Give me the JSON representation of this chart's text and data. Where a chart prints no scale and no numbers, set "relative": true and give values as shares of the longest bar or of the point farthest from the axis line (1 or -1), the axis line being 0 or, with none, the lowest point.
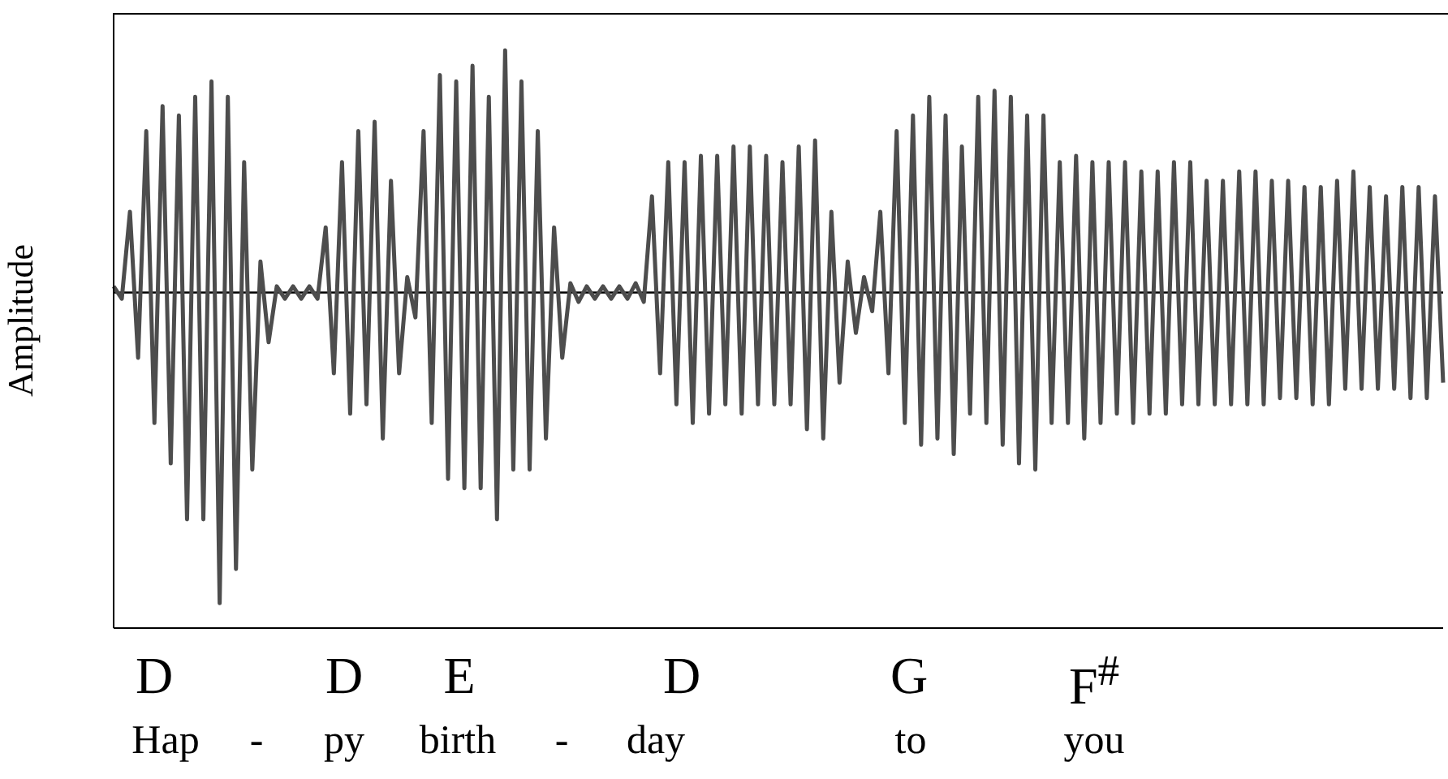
{
  "chart_data": {
    "type": "line",
    "relative": true,
    "ylabel": "Amplitude",
    "color": "#4d4d4d",
    "marker": "none",
    "ref_lines": [
      {
        "axis": "y",
        "value": 0,
        "color": "#000000"
      }
    ],
    "annotations": [
      "D",
      "D",
      "E",
      "D",
      "G",
      "F$^{#}$",
      "Hap",
      "-",
      "py",
      "birth",
      "-",
      "day",
      "to",
      "you"
    ],
    "categories": [
      null,
      null,
      null,
      null,
      null,
      null,
      null,
      null,
      null,
      null,
      null,
      null,
      null,
      null,
      null,
      null,
      null,
      null,
      null,
      null,
      null,
      null,
      null,
      null,
      null,
      null,
      null,
      null,
      null,
      null,
      null,
      null,
      null,
      null,
      null,
      null,
      null,
      null,
      null,
      null,
      null,
      null,
      null,
      null,
      null,
      null,
      null,
      null,
      null,
      null,
      null,
      null,
      null,
      null,
      null,
      null,
      null,
      null,
      null,
      null,
      null,
      null,
      null,
      null,
      null,
      null,
      null,
      null,
      null,
      null,
      null,
      null,
      null,
      null,
      null,
      null,
      null,
      null,
      null,
      null,
      null,
      null,
      null,
      null,
      null,
      null,
      null,
      null,
      null,
      null,
      null,
      null,
      null,
      null,
      null,
      null,
      null,
      null,
      null,
      null,
      null,
      null,
      null,
      null,
      null,
      null,
      null,
      null,
      null,
      null,
      null,
      null,
      null,
      null,
      null,
      null,
      null,
      null,
      null,
      null,
      null,
      null,
      null,
      null,
      null,
      null,
      null,
      null,
      null,
      null,
      null,
      null,
      null,
      null,
      null,
      null,
      null,
      null,
      null,
      null,
      null,
      null,
      null,
      null,
      null,
      null,
      null,
      null,
      null,
      null,
      null,
      null,
      null,
      null,
      null,
      null,
      null,
      null,
      null,
      null,
      null,
      null,
      null,
      null
    ],
    "values": [
      0.02,
      -0.02,
      0.26,
      -0.21,
      0.52,
      -0.42,
      0.6,
      -0.55,
      0.57,
      -0.73,
      0.63,
      -0.73,
      0.68,
      -1,
      0.63,
      -0.89,
      0.42,
      -0.57,
      0.1,
      -0.16,
      0.02,
      -0.02,
      0.02,
      -0.02,
      0.02,
      -0.02,
      0.21,
      -0.26,
      0.42,
      -0.39,
      0.52,
      -0.36,
      0.55,
      -0.47,
      0.36,
      -0.26,
      0.05,
      -0.08,
      0.52,
      -0.42,
      0.7,
      -0.6,
      0.68,
      -0.63,
      0.73,
      -0.63,
      0.63,
      -0.73,
      0.78,
      -0.57,
      0.68,
      -0.57,
      0.52,
      -0.47,
      0.21,
      -0.21,
      0.03,
      -0.03,
      0.02,
      -0.02,
      0.02,
      -0.02,
      0.02,
      -0.02,
      0.03,
      -0.03,
      0.31,
      -0.26,
      0.42,
      -0.36,
      0.42,
      -0.42,
      0.44,
      -0.39,
      0.44,
      -0.36,
      0.47,
      -0.39,
      0.47,
      -0.36,
      0.44,
      -0.36,
      0.42,
      -0.36,
      0.47,
      -0.44,
      0.49,
      -0.47,
      0.26,
      -0.29,
      0.1,
      -0.13,
      0.05,
      -0.06,
      0.26,
      -0.26,
      0.52,
      -0.42,
      0.57,
      -0.49,
      0.63,
      -0.47,
      0.57,
      -0.52,
      0.47,
      -0.39,
      0.63,
      -0.42,
      0.65,
      -0.49,
      0.63,
      -0.55,
      0.57,
      -0.57,
      0.57,
      -0.42,
      0.42,
      -0.42,
      0.44,
      -0.47,
      0.42,
      -0.42,
      0.42,
      -0.39,
      0.42,
      -0.42,
      0.39,
      -0.39,
      0.39,
      -0.39,
      0.42,
      -0.36,
      0.42,
      -0.36,
      0.36,
      -0.36,
      0.36,
      -0.36,
      0.39,
      -0.36,
      0.39,
      -0.36,
      0.36,
      -0.34,
      0.36,
      -0.34,
      0.34,
      -0.36,
      0.34,
      -0.36,
      0.36,
      -0.31,
      0.39,
      -0.31,
      0.34,
      -0.31,
      0.31,
      -0.31,
      0.34,
      -0.34,
      0.34,
      -0.34,
      0.31,
      -0.29
    ]
  }
}
